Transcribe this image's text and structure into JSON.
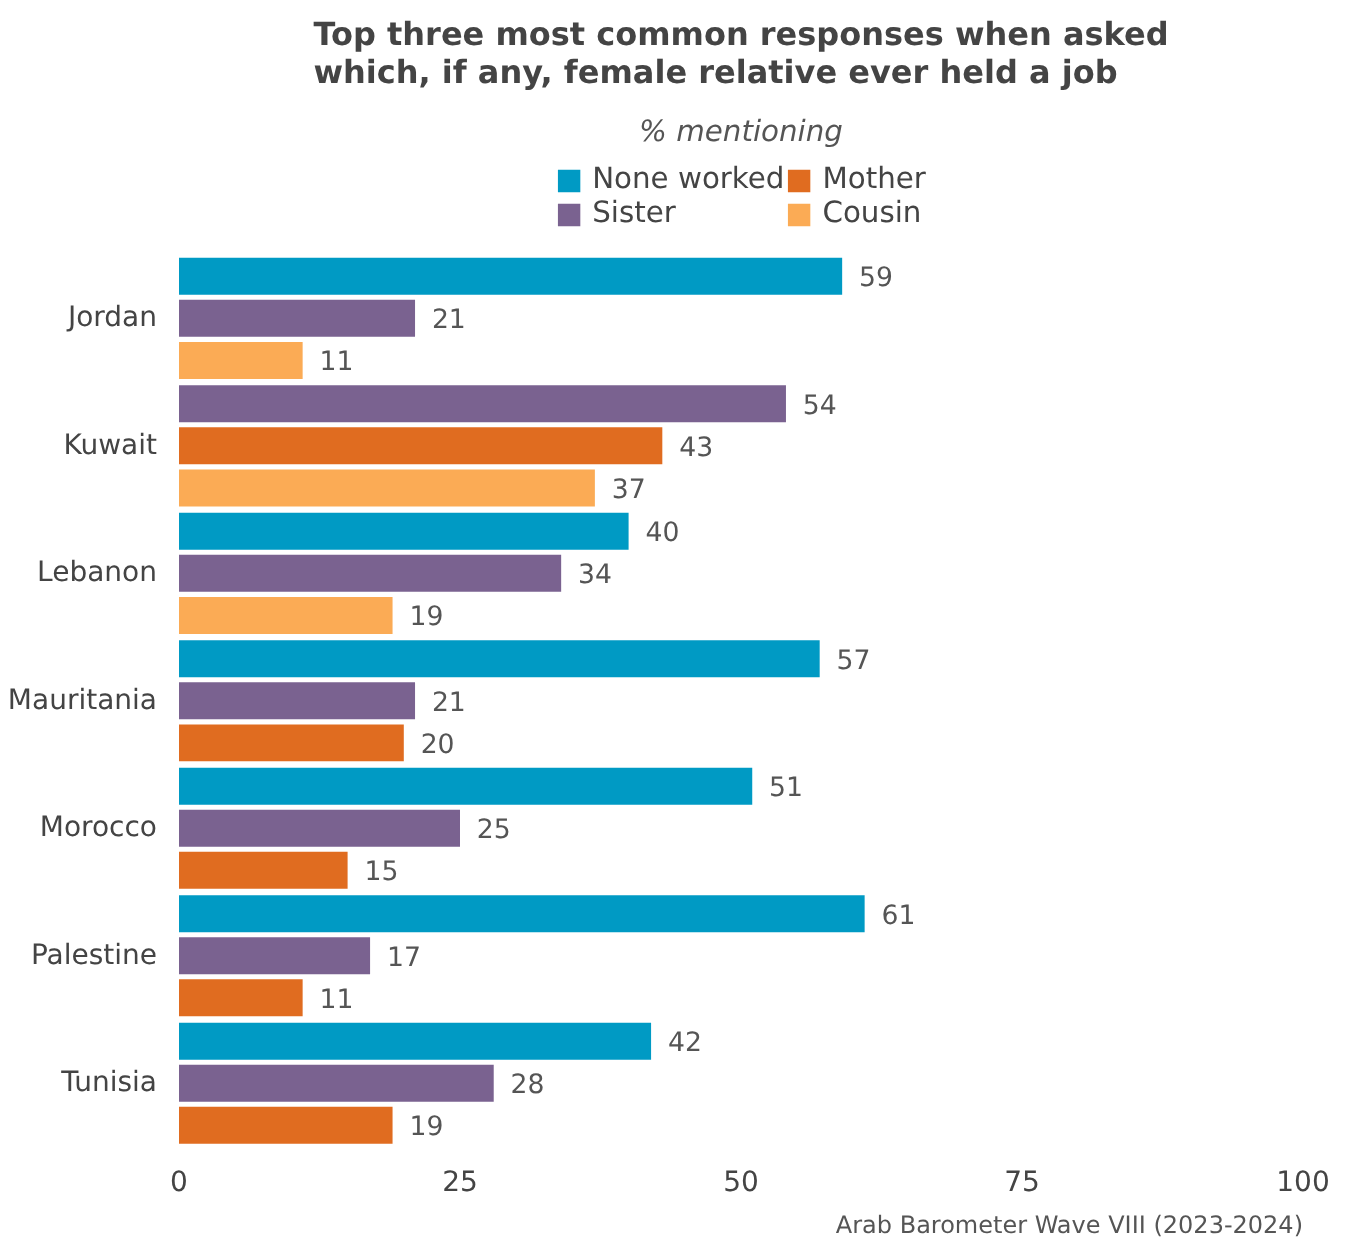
{
  "chart_data": {
    "type": "bar",
    "orientation": "horizontal",
    "title": "Top three most common responses when asked\nwhich, if any, female relative ever held a job",
    "subtitle": "% mentioning",
    "categories": [
      "Jordan",
      "Kuwait",
      "Lebanon",
      "Mauritania",
      "Morocco",
      "Palestine",
      "Tunisia"
    ],
    "series": [
      {
        "name": "None worked",
        "color": "#009ac4",
        "values": [
          59,
          null,
          40,
          57,
          51,
          61,
          42
        ]
      },
      {
        "name": "Sister",
        "color": "#7a6290",
        "values": [
          21,
          54,
          34,
          21,
          25,
          17,
          28
        ]
      },
      {
        "name": "Mother",
        "color": "#e06c20",
        "values": [
          null,
          43,
          null,
          20,
          15,
          11,
          19
        ]
      },
      {
        "name": "Cousin",
        "color": "#fbab55",
        "values": [
          11,
          37,
          19,
          null,
          null,
          null,
          null
        ]
      }
    ],
    "xlim": [
      0,
      100
    ],
    "xticks": [
      0,
      25,
      50,
      75,
      100
    ],
    "grid": false,
    "legend": "top",
    "data_labels": true,
    "annotations": [
      "Arab Barometer Wave VIII (2023-2024)"
    ]
  }
}
